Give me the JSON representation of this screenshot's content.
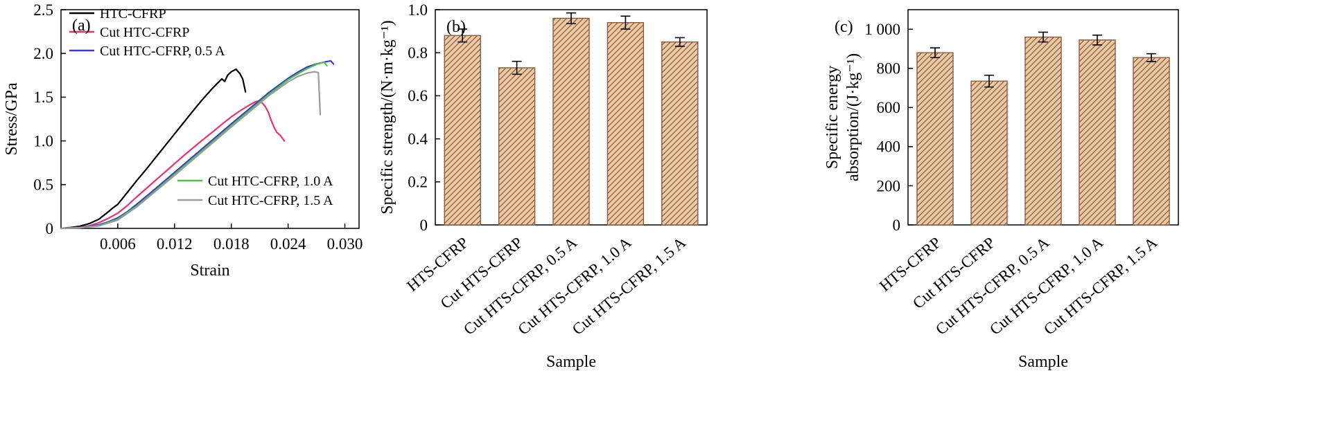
{
  "figure": {
    "background": "#ffffff",
    "panel_labels": [
      "(a)",
      "(b)",
      "(c)"
    ]
  },
  "chart_data": [
    {
      "type": "line",
      "panel_label": "(a)",
      "xlabel": "Strain",
      "ylabel": "Stress/GPa",
      "xlim": [
        0,
        0.0315
      ],
      "ylim": [
        0,
        2.5
      ],
      "grid": false,
      "xticks": {
        "values": [
          0.006,
          0.012,
          0.018,
          0.024,
          0.03
        ],
        "labels": [
          "0.006",
          "0.012",
          "0.018",
          "0.024",
          "0.030"
        ]
      },
      "yticks": {
        "values": [
          0,
          0.5,
          1.0,
          1.5,
          2.0,
          2.5
        ],
        "labels": [
          "0",
          "0.5",
          "1.0",
          "1.5",
          "2.0",
          "2.5"
        ]
      },
      "legend_groups": [
        {
          "position": "top-left",
          "items": [
            0,
            1,
            2
          ]
        },
        {
          "position": "inside-lower-right",
          "items": [
            3,
            4
          ]
        }
      ],
      "series": [
        {
          "name": "HTC-CFRP",
          "color": "#000000",
          "points": [
            [
              0,
              0
            ],
            [
              0.001,
              0.01
            ],
            [
              0.002,
              0.025
            ],
            [
              0.003,
              0.055
            ],
            [
              0.004,
              0.105
            ],
            [
              0.005,
              0.19
            ],
            [
              0.0055,
              0.235
            ],
            [
              0.006,
              0.275
            ],
            [
              0.007,
              0.41
            ],
            [
              0.008,
              0.545
            ],
            [
              0.009,
              0.675
            ],
            [
              0.01,
              0.81
            ],
            [
              0.011,
              0.945
            ],
            [
              0.012,
              1.08
            ],
            [
              0.013,
              1.215
            ],
            [
              0.014,
              1.35
            ],
            [
              0.015,
              1.48
            ],
            [
              0.016,
              1.6
            ],
            [
              0.0165,
              1.655
            ],
            [
              0.017,
              1.71
            ],
            [
              0.0173,
              1.68
            ],
            [
              0.0176,
              1.75
            ],
            [
              0.018,
              1.79
            ],
            [
              0.0185,
              1.82
            ],
            [
              0.0189,
              1.77
            ],
            [
              0.0192,
              1.71
            ],
            [
              0.0195,
              1.56
            ]
          ]
        },
        {
          "name": "Cut HTC-CFRP",
          "color": "#ee2f74",
          "points": [
            [
              0,
              0
            ],
            [
              0.002,
              0.012
            ],
            [
              0.003,
              0.03
            ],
            [
              0.004,
              0.065
            ],
            [
              0.005,
              0.115
            ],
            [
              0.006,
              0.175
            ],
            [
              0.007,
              0.26
            ],
            [
              0.008,
              0.36
            ],
            [
              0.009,
              0.455
            ],
            [
              0.01,
              0.55
            ],
            [
              0.011,
              0.645
            ],
            [
              0.012,
              0.74
            ],
            [
              0.013,
              0.835
            ],
            [
              0.014,
              0.925
            ],
            [
              0.015,
              1.015
            ],
            [
              0.016,
              1.1
            ],
            [
              0.017,
              1.19
            ],
            [
              0.018,
              1.275
            ],
            [
              0.019,
              1.35
            ],
            [
              0.02,
              1.415
            ],
            [
              0.0206,
              1.45
            ],
            [
              0.021,
              1.455
            ],
            [
              0.0213,
              1.43
            ],
            [
              0.0216,
              1.39
            ],
            [
              0.0219,
              1.33
            ],
            [
              0.0222,
              1.24
            ],
            [
              0.0225,
              1.16
            ],
            [
              0.0228,
              1.1
            ],
            [
              0.0232,
              1.06
            ],
            [
              0.0236,
              1.0
            ]
          ]
        },
        {
          "name": "Cut HTC-CFRP, 0.5 A",
          "color": "#3a3ad0",
          "points": [
            [
              0,
              0
            ],
            [
              0.002,
              0.01
            ],
            [
              0.004,
              0.04
            ],
            [
              0.005,
              0.075
            ],
            [
              0.006,
              0.12
            ],
            [
              0.007,
              0.19
            ],
            [
              0.008,
              0.275
            ],
            [
              0.009,
              0.365
            ],
            [
              0.01,
              0.455
            ],
            [
              0.012,
              0.64
            ],
            [
              0.014,
              0.825
            ],
            [
              0.016,
              1.01
            ],
            [
              0.018,
              1.195
            ],
            [
              0.02,
              1.375
            ],
            [
              0.022,
              1.555
            ],
            [
              0.024,
              1.715
            ],
            [
              0.025,
              1.785
            ],
            [
              0.026,
              1.845
            ],
            [
              0.027,
              1.88
            ],
            [
              0.028,
              1.905
            ],
            [
              0.0285,
              1.915
            ],
            [
              0.0288,
              1.88
            ]
          ]
        },
        {
          "name": "Cut HTC-CFRP, 1.0 A",
          "color": "#46c246",
          "points": [
            [
              0,
              0
            ],
            [
              0.002,
              0.008
            ],
            [
              0.004,
              0.032
            ],
            [
              0.006,
              0.105
            ],
            [
              0.008,
              0.255
            ],
            [
              0.01,
              0.435
            ],
            [
              0.012,
              0.62
            ],
            [
              0.014,
              0.805
            ],
            [
              0.016,
              0.99
            ],
            [
              0.018,
              1.175
            ],
            [
              0.02,
              1.355
            ],
            [
              0.022,
              1.535
            ],
            [
              0.024,
              1.7
            ],
            [
              0.025,
              1.765
            ],
            [
              0.026,
              1.825
            ],
            [
              0.027,
              1.875
            ],
            [
              0.0278,
              1.9
            ],
            [
              0.0281,
              1.86
            ]
          ]
        },
        {
          "name": "Cut HTC-CFRP, 1.5 A",
          "color": "#9b9b9b",
          "points": [
            [
              0,
              0
            ],
            [
              0.002,
              0.006
            ],
            [
              0.004,
              0.028
            ],
            [
              0.006,
              0.095
            ],
            [
              0.008,
              0.245
            ],
            [
              0.01,
              0.425
            ],
            [
              0.012,
              0.605
            ],
            [
              0.014,
              0.79
            ],
            [
              0.016,
              0.975
            ],
            [
              0.018,
              1.16
            ],
            [
              0.02,
              1.34
            ],
            [
              0.022,
              1.52
            ],
            [
              0.024,
              1.675
            ],
            [
              0.025,
              1.735
            ],
            [
              0.026,
              1.775
            ],
            [
              0.0268,
              1.79
            ],
            [
              0.0272,
              1.78
            ],
            [
              0.0274,
              1.3
            ]
          ]
        }
      ]
    },
    {
      "type": "bar",
      "panel_label": "(b)",
      "xlabel": "Sample",
      "ylabel": [
        "Specific strength/(N·m·kg⁻¹)"
      ],
      "categories": [
        "HTS-CFRP",
        "Cut HTS-CFRP",
        "Cut HTS-CFRP, 0.5 A",
        "Cut HTS-CFRP, 1.0 A",
        "Cut HTS-CFRP, 1.5 A"
      ],
      "values": [
        0.88,
        0.73,
        0.96,
        0.94,
        0.85
      ],
      "errors": [
        0.03,
        0.03,
        0.025,
        0.03,
        0.02
      ],
      "ylim": [
        0,
        1.0
      ],
      "grid": false,
      "yticks": {
        "values": [
          0,
          0.2,
          0.4,
          0.6,
          0.8,
          1.0
        ],
        "labels": [
          "0",
          "0.2",
          "0.4",
          "0.6",
          "0.8",
          "1.0"
        ]
      },
      "bar_fill": "#eccaa5",
      "hatch_color": "#8a5a3c",
      "edge_color": "#8a5a3c"
    },
    {
      "type": "bar",
      "panel_label": "(c)",
      "xlabel": "Sample",
      "ylabel": [
        "Specific energy",
        "absorption/(J·kg⁻¹)"
      ],
      "categories": [
        "HTS-CFRP",
        "Cut HTS-CFRP",
        "Cut HTS-CFRP, 0.5 A",
        "Cut HTS-CFRP, 1.0 A",
        "Cut HTS-CFRP, 1.5 A"
      ],
      "values": [
        880,
        735,
        960,
        945,
        855
      ],
      "errors": [
        25,
        30,
        25,
        25,
        20
      ],
      "ylim": [
        0,
        1100
      ],
      "grid": false,
      "yticks": {
        "values": [
          0,
          200,
          400,
          600,
          800,
          1000
        ],
        "labels": [
          "0",
          "200",
          "400",
          "600",
          "800",
          "1 000"
        ]
      },
      "bar_fill": "#eccaa5",
      "hatch_color": "#8a5a3c",
      "edge_color": "#8a5a3c"
    }
  ]
}
